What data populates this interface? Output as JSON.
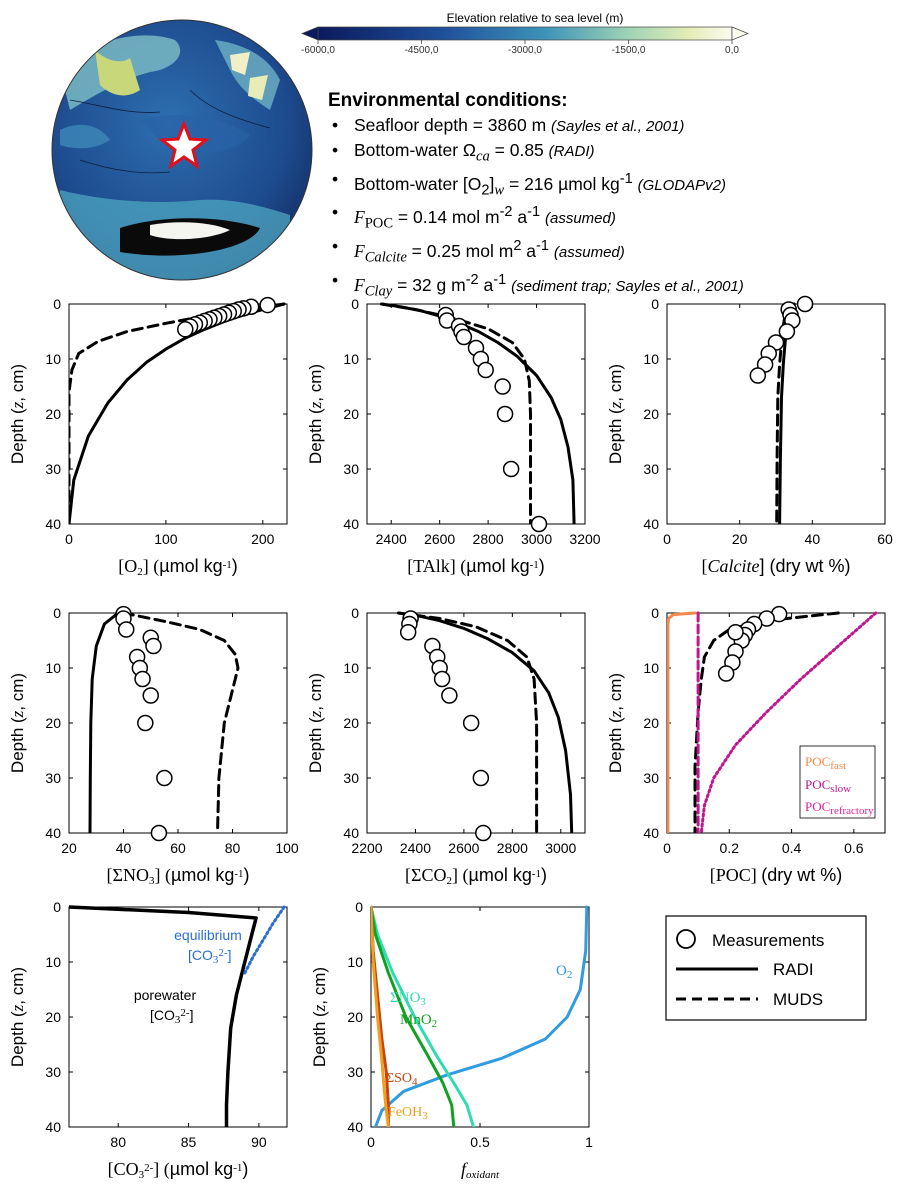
{
  "colorbar": {
    "title": "Elevation relative to sea level (m)",
    "ticks": [
      "-6000,0",
      "-4500,0",
      "-3000,0",
      "-1500,0",
      "0,0"
    ]
  },
  "env": {
    "title": "Environmental conditions:",
    "items": [
      {
        "pre": "Seafloor depth = 3860 m ",
        "note": "(Sayles et al., 2001)"
      },
      {
        "pre": "Bottom-water Ω",
        "sub": "ca",
        "post": " = 0.85 ",
        "note": "(RADI)"
      },
      {
        "pre": "Bottom-water [O",
        "sub": "2",
        "mid": "]",
        "sub2": "w",
        "post": " = 216 µmol kg",
        "sup": "-1",
        "post2": " ",
        "note": "(GLODAPv2)"
      },
      {
        "sym": "F",
        "sub": "POC",
        "post": " = 0.14 mol m",
        "sup": "-2",
        "post2": " a",
        "sup2": "-1",
        "post3": " ",
        "note": "(assumed)"
      },
      {
        "sym": "F",
        "sub": "Calcite",
        "post": " = 0.25 mol m",
        "sup": "2",
        "post2": " a",
        "sup2": "-1",
        "post3": " ",
        "note": "(assumed)"
      },
      {
        "sym": "F",
        "sub": "Clay",
        "post": " = 32 g m",
        "sup": "-2",
        "post2": " a",
        "sup2": "-1",
        "post3": " ",
        "note": "(sediment trap; Sayles et al., 2001)"
      }
    ]
  },
  "ylabel": "Depth (z, cm)",
  "legend": {
    "measurements": "Measurements",
    "radi": "RADI",
    "muds": "MUDS"
  },
  "colors": {
    "measured": "#000000",
    "poc_fast": "#f4884a",
    "poc_slow": "#c0158c",
    "poc_refractory": "#e0249a",
    "o2": "#2f9be0",
    "no3": "#2fdcb0",
    "mno2": "#12a020",
    "so4": "#c84410",
    "feoh3": "#f0a020",
    "equilibrium": "#2a6fd0"
  },
  "chart_data": [
    {
      "id": "o2",
      "type": "line",
      "xlabel": "[O2] (µmol kg-1)",
      "xlim": [
        0,
        225
      ],
      "xticks": [
        0,
        100,
        200
      ],
      "ylim": [
        0,
        40
      ],
      "yticks": [
        0,
        10,
        20,
        30,
        40
      ],
      "series": [
        {
          "kind": "measurements",
          "x": [
            205,
            188,
            180,
            175,
            170,
            165,
            160,
            155,
            150,
            145,
            140,
            135,
            130,
            125,
            120
          ],
          "y": [
            0.2,
            0.5,
            0.8,
            1.0,
            1.3,
            1.6,
            1.9,
            2.2,
            2.5,
            2.8,
            3.1,
            3.4,
            3.7,
            4.1,
            4.6
          ]
        },
        {
          "kind": "radi",
          "x": [
            222,
            200,
            180,
            160,
            140,
            120,
            100,
            80,
            60,
            40,
            20,
            5,
            0
          ],
          "y": [
            0,
            1.0,
            2.0,
            3.2,
            4.6,
            6.2,
            8.2,
            10.6,
            13.8,
            18.0,
            24.0,
            32.0,
            40
          ]
        },
        {
          "kind": "muds",
          "x": [
            222,
            180,
            140,
            100,
            60,
            30,
            10,
            3,
            0,
            0
          ],
          "y": [
            0,
            1.0,
            2.2,
            3.5,
            5.0,
            6.8,
            9.0,
            12.0,
            16.0,
            40
          ]
        }
      ]
    },
    {
      "id": "talk",
      "type": "line",
      "xlabel": "[TAlk] (µmol kg-1)",
      "xlim": [
        2300,
        3200
      ],
      "xticks": [
        2400,
        2600,
        2800,
        3000,
        3200
      ],
      "ylim": [
        0,
        40
      ],
      "yticks": [
        0,
        10,
        20,
        30,
        40
      ],
      "series": [
        {
          "kind": "measurements",
          "x": [
            2625,
            2630,
            2680,
            2690,
            2700,
            2750,
            2770,
            2790,
            2860,
            2870,
            2895,
            3010
          ],
          "y": [
            2,
            3,
            4,
            5,
            6,
            8,
            10,
            12,
            15,
            20,
            30,
            40
          ]
        },
        {
          "kind": "radi",
          "x": [
            2360,
            2440,
            2520,
            2600,
            2680,
            2760,
            2840,
            2920,
            3000,
            3060,
            3100,
            3130,
            3150,
            3155
          ],
          "y": [
            0,
            0.5,
            1.2,
            2.2,
            3.5,
            5.0,
            7.0,
            9.5,
            13.0,
            17.0,
            21.0,
            26.0,
            32.0,
            40
          ]
        },
        {
          "kind": "muds",
          "x": [
            2360,
            2500,
            2650,
            2800,
            2900,
            2950,
            2970,
            2975,
            2975
          ],
          "y": [
            0,
            1.0,
            2.5,
            4.5,
            7.0,
            10.0,
            14.0,
            20.0,
            40
          ]
        }
      ]
    },
    {
      "id": "calcite",
      "type": "line",
      "xlabel": "[Calcite] (dry wt %)",
      "xlim": [
        0,
        60
      ],
      "xticks": [
        0,
        20,
        40,
        60
      ],
      "ylim": [
        0,
        40
      ],
      "yticks": [
        0,
        10,
        20,
        30,
        40
      ],
      "series": [
        {
          "kind": "measurements",
          "x": [
            38,
            33.5,
            34,
            34.5,
            33,
            30,
            28,
            27,
            25
          ],
          "y": [
            0,
            1,
            2,
            3,
            5,
            7,
            9,
            11,
            13
          ]
        },
        {
          "kind": "radi",
          "x": [
            35,
            34,
            33.5,
            33,
            32.5,
            32,
            31.5,
            31.2,
            31
          ],
          "y": [
            0,
            1,
            2,
            4,
            7,
            11,
            17,
            28,
            40
          ]
        },
        {
          "kind": "muds",
          "x": [
            33.5,
            33,
            32.5,
            32,
            31.5,
            31,
            30.5,
            30.3,
            30.2
          ],
          "y": [
            0,
            1,
            2,
            4,
            7,
            11,
            17,
            28,
            40
          ]
        }
      ]
    },
    {
      "id": "no3",
      "type": "line",
      "xlabel": "[ΣNO3] (µmol kg-1)",
      "xlim": [
        20,
        100
      ],
      "xticks": [
        20,
        40,
        60,
        80,
        100
      ],
      "ylim": [
        0,
        40
      ],
      "yticks": [
        0,
        10,
        20,
        30,
        40
      ],
      "series": [
        {
          "kind": "measurements",
          "x": [
            40,
            40,
            41,
            50,
            51,
            45,
            46,
            47,
            50,
            48,
            55,
            53
          ],
          "y": [
            0.2,
            1,
            3,
            4.5,
            6,
            8,
            10,
            12,
            15,
            20,
            30,
            40
          ]
        },
        {
          "kind": "radi",
          "x": [
            38,
            33,
            30,
            28.5,
            28,
            27.8,
            27.7
          ],
          "y": [
            0,
            2,
            6,
            12,
            20,
            30,
            40
          ]
        },
        {
          "kind": "muds",
          "x": [
            40,
            55,
            68,
            77,
            81,
            82,
            80,
            77,
            75,
            74.5
          ],
          "y": [
            0,
            1.5,
            3,
            5,
            7.5,
            10,
            14,
            20,
            30,
            40
          ]
        }
      ]
    },
    {
      "id": "co2",
      "type": "line",
      "xlabel": "[ΣCO2] (µmol kg-1)",
      "xlim": [
        2200,
        3100
      ],
      "xticks": [
        2200,
        2400,
        2600,
        2800,
        3000
      ],
      "ylim": [
        0,
        40
      ],
      "yticks": [
        0,
        10,
        20,
        30,
        40
      ],
      "series": [
        {
          "kind": "measurements",
          "x": [
            2380,
            2375,
            2370,
            2470,
            2490,
            2500,
            2510,
            2540,
            2630,
            2670,
            2680
          ],
          "y": [
            1,
            2,
            3.5,
            6,
            8,
            10,
            12,
            15,
            20,
            30,
            40
          ]
        },
        {
          "kind": "radi",
          "x": [
            2330,
            2420,
            2500,
            2600,
            2700,
            2800,
            2890,
            2950,
            2990,
            3020,
            3040,
            3045
          ],
          "y": [
            0,
            0.6,
            1.4,
            2.8,
            4.7,
            7.2,
            10.5,
            14.5,
            19.0,
            25.0,
            33.0,
            40
          ]
        },
        {
          "kind": "muds",
          "x": [
            2330,
            2500,
            2650,
            2780,
            2860,
            2890,
            2900,
            2900
          ],
          "y": [
            0,
            1.0,
            2.5,
            5.0,
            8.0,
            12.0,
            20.0,
            40
          ]
        }
      ]
    },
    {
      "id": "poc",
      "type": "line",
      "xlabel": "[POC] (dry wt %)",
      "xlim": [
        0,
        0.7
      ],
      "xticks": [
        0,
        0.2,
        0.4,
        0.6
      ],
      "ylim": [
        0,
        40
      ],
      "yticks": [
        0,
        10,
        20,
        30,
        40
      ],
      "legend": [
        "POCfast",
        "POCslow",
        "POCrefractory"
      ],
      "series": [
        {
          "kind": "measurements",
          "x": [
            0.36,
            0.32,
            0.28,
            0.26,
            0.25,
            0.24,
            0.22,
            0.21,
            0.22,
            0.19
          ],
          "y": [
            0.2,
            1,
            2,
            3,
            4,
            5,
            7,
            9,
            3.5,
            11
          ]
        },
        {
          "kind": "muds",
          "x": [
            0.55,
            0.3,
            0.2,
            0.15,
            0.12,
            0.11,
            0.1,
            0.09,
            0.09
          ],
          "y": [
            0,
            1.5,
            3,
            5,
            8,
            12,
            18,
            28,
            40
          ]
        },
        {
          "kind": "poc_fast",
          "x": [
            0.09,
            0.02,
            0.005,
            0.003,
            0.003
          ],
          "y": [
            0,
            0.3,
            1.0,
            2.0,
            40
          ]
        },
        {
          "kind": "poc_slow",
          "x": [
            0.67,
            0.55,
            0.43,
            0.32,
            0.22,
            0.15,
            0.12,
            0.11
          ],
          "y": [
            0,
            6,
            12,
            18,
            24,
            30,
            35,
            40
          ]
        },
        {
          "kind": "poc_refractory",
          "x": [
            0.1,
            0.1,
            0.1,
            0.1
          ],
          "y": [
            0,
            10,
            20,
            40
          ]
        }
      ]
    },
    {
      "id": "co3",
      "type": "line",
      "xlabel": "[CO32-] (µmol kg-1)",
      "xlim": [
        76.5,
        92
      ],
      "xticks": [
        80,
        85,
        90
      ],
      "ylim": [
        0,
        40
      ],
      "yticks": [
        0,
        10,
        20,
        30,
        40
      ],
      "annotations": {
        "equilibrium": "equilibrium",
        "equilibrium_sub": "[CO32-]",
        "porewater": "porewater",
        "porewater_sub": "[CO32-]"
      },
      "series": [
        {
          "kind": "porewater",
          "x": [
            76.5,
            85,
            89.8,
            89.5,
            89,
            88.4,
            88,
            87.8,
            87.7,
            87.7
          ],
          "y": [
            0,
            1.0,
            2.0,
            5.0,
            10.0,
            16.0,
            22.0,
            30.0,
            36.0,
            40
          ]
        },
        {
          "kind": "equilibrium",
          "x": [
            91.8,
            91.0,
            90.3,
            89.6,
            89.0
          ],
          "y": [
            0,
            3,
            6,
            9,
            12
          ]
        }
      ]
    },
    {
      "id": "foxidant",
      "type": "line",
      "xlabel": "foxidant",
      "xlim": [
        0,
        1
      ],
      "xticks": [
        0,
        0.5,
        1
      ],
      "ylim": [
        0,
        40
      ],
      "yticks": [
        0,
        10,
        20,
        30,
        40
      ],
      "labels": {
        "o2": "O2",
        "no3": "ΣNO3",
        "mno2": "MnO2",
        "so4": "ΣSO4",
        "feoh3": "FeOH3"
      },
      "series": [
        {
          "kind": "o2",
          "x": [
            0.99,
            0.985,
            0.96,
            0.9,
            0.8,
            0.6,
            0.35,
            0.15,
            0.05,
            0.02
          ],
          "y": [
            0,
            8,
            15,
            20,
            24,
            27.5,
            30.5,
            33.5,
            37,
            40
          ]
        },
        {
          "kind": "no3",
          "x": [
            0,
            0.03,
            0.1,
            0.2,
            0.3,
            0.38,
            0.44,
            0.47
          ],
          "y": [
            0,
            5,
            12,
            20,
            27,
            32,
            36,
            40
          ]
        },
        {
          "kind": "mno2",
          "x": [
            0,
            0.02,
            0.08,
            0.16,
            0.26,
            0.33,
            0.37,
            0.38
          ],
          "y": [
            0,
            5,
            12,
            20,
            27,
            32,
            36,
            40
          ]
        },
        {
          "kind": "so4",
          "x": [
            0,
            0.01,
            0.03,
            0.05,
            0.07,
            0.08,
            0.08
          ],
          "y": [
            0,
            8,
            16,
            24,
            30,
            36,
            40
          ]
        },
        {
          "kind": "feoh3",
          "x": [
            0,
            0.01,
            0.03,
            0.05,
            0.06,
            0.07,
            0.08
          ],
          "y": [
            0,
            10,
            20,
            28,
            33,
            37,
            40
          ]
        }
      ]
    }
  ]
}
